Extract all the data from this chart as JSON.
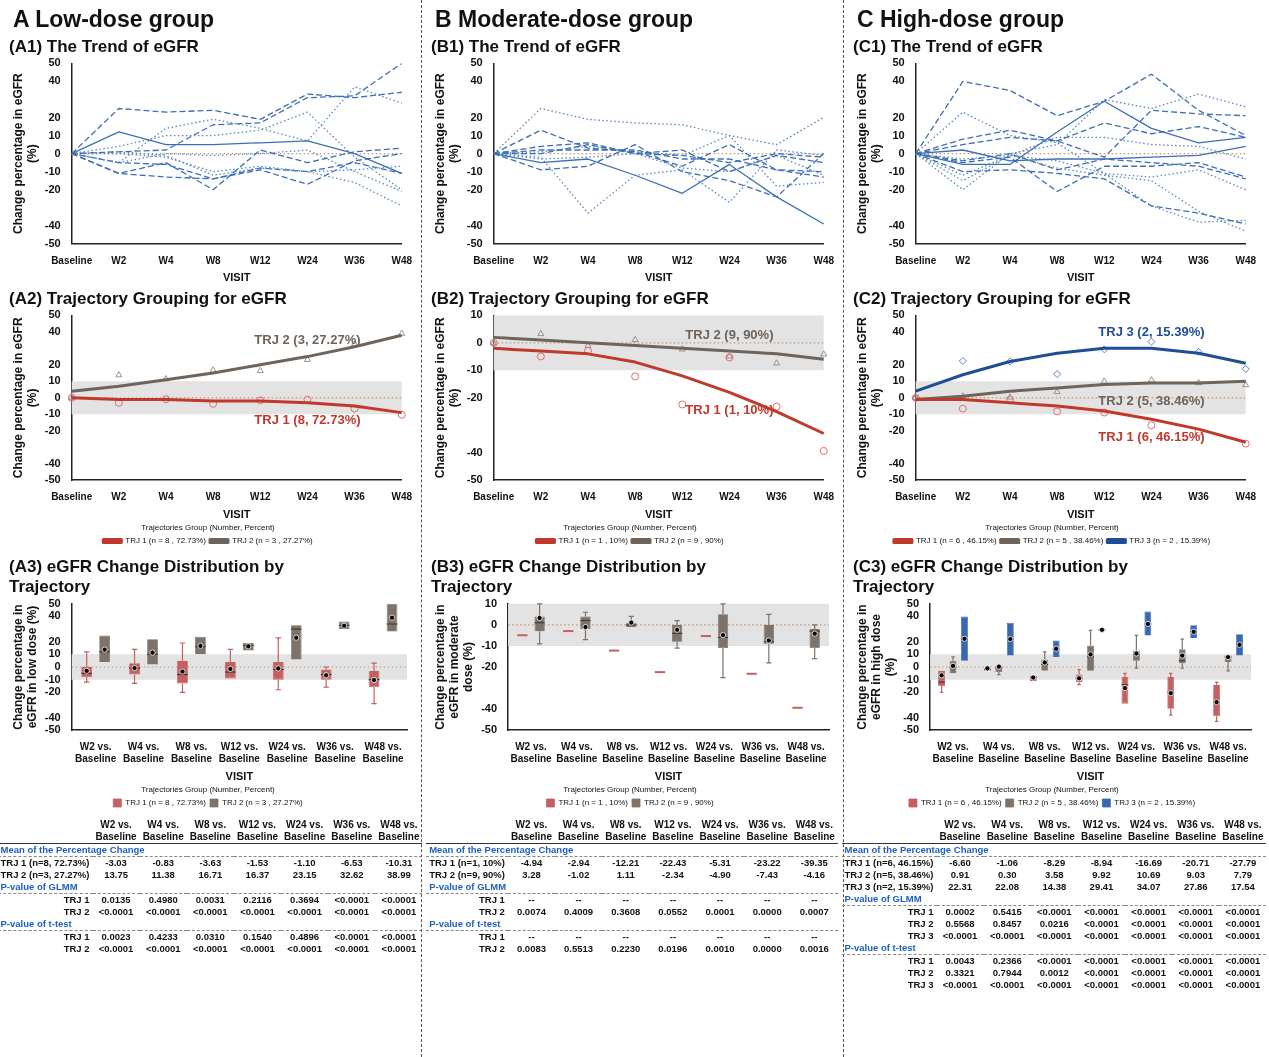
{
  "chart_data": [
    {
      "type": "line",
      "title": "(A1) The Trend of eGFR",
      "annotations": [
        "A  Low-dose group"
      ],
      "xlabel": "VISIT",
      "ylabel": "Change percentage in eGFR (%)",
      "marker": "none",
      "categories": [
        "Baseline",
        "W2",
        "W4",
        "W8",
        "W12",
        "W24",
        "W36",
        "W48"
      ],
      "ylim": [
        -50,
        50
      ],
      "yticks": [
        -50,
        -40,
        -20,
        -10,
        0,
        10,
        20,
        40,
        50
      ],
      "ref_lines": [
        {
          "axis": "y",
          "value": 0,
          "color": "#c8956a",
          "line_style": "dotted"
        }
      ],
      "series": [
        {
          "color": "#3d6fb6",
          "line_style": "solid",
          "values": [
            0,
            12,
            5,
            5,
            6,
            7,
            0,
            -11
          ]
        },
        {
          "color": "#3d6fb6",
          "line_style": "dashed",
          "values": [
            0,
            25,
            23,
            24,
            19,
            33,
            31,
            34
          ]
        },
        {
          "color": "#5b86c4",
          "line_style": "dotted",
          "values": [
            0,
            -5,
            14,
            19,
            14,
            7,
            37,
            28
          ]
        },
        {
          "color": "#3d6fb6",
          "line_style": "dashed",
          "values": [
            0,
            1,
            2,
            16,
            17,
            31,
            32,
            50
          ]
        },
        {
          "color": "#5b86c4",
          "line_style": "dotted",
          "values": [
            0,
            4,
            10,
            10,
            13,
            23,
            -2,
            -20
          ]
        },
        {
          "color": "#3d6fb6",
          "line_style": "dashed",
          "values": [
            0,
            -11,
            -5,
            -20,
            2,
            -5,
            1,
            3
          ]
        },
        {
          "color": "#3d6fb6",
          "line_style": "dashed",
          "values": [
            0,
            -11,
            -13,
            -14,
            -9,
            -17,
            -4,
            0
          ]
        },
        {
          "color": "#5b86c4",
          "line_style": "dotted",
          "values": [
            0,
            -5,
            0,
            -1,
            0,
            2,
            -10,
            -21
          ]
        },
        {
          "color": "#5b86c4",
          "line_style": "dotted",
          "values": [
            0,
            0,
            -2,
            -10,
            -7,
            -10,
            -16,
            -29
          ]
        },
        {
          "color": "#5b86c4",
          "line_style": "dotted",
          "values": [
            0,
            1,
            -1,
            -12,
            -8,
            -10,
            -9,
            -7
          ]
        },
        {
          "color": "#3d6fb6",
          "line_style": "dashed",
          "values": [
            0,
            -5,
            -6,
            -14,
            -8,
            -10,
            -5,
            -11
          ]
        }
      ]
    },
    {
      "type": "line",
      "title": "(A2) Trajectory Grouping for eGFR",
      "xlabel": "VISIT",
      "ylabel": "Change percentage in eGFR (%)",
      "marker": "none",
      "legend": "bottom",
      "legend_title": "Trajectories Group (Number, Percent)",
      "categories": [
        "Baseline",
        "W2",
        "W4",
        "W8",
        "W12",
        "W24",
        "W36",
        "W48"
      ],
      "ylim": [
        -50,
        50
      ],
      "yticks": [
        -50,
        -40,
        -20,
        -10,
        0,
        10,
        20,
        40,
        50
      ],
      "bands": [
        {
          "axis": "y",
          "from": -10,
          "to": 10,
          "color": "#e3e3e3"
        }
      ],
      "ref_lines": [
        {
          "axis": "y",
          "value": 0,
          "color": "#c8956a",
          "line_style": "dotted"
        }
      ],
      "annotations": [
        "TRJ 1 (8, 72.73%)",
        "TRJ 2 (3, 27.27%)"
      ],
      "series": [
        {
          "name": "TRJ 1 (n = 8 , 72.73%)",
          "color": "#c0392b",
          "values": [
            0,
            -1,
            -1,
            -2,
            -2,
            -3,
            -5,
            -9
          ]
        },
        {
          "name": "TRJ 2 (n = 3 , 27.27%)",
          "color": "#6e645c",
          "values": [
            4,
            7,
            11,
            15,
            20,
            25,
            31,
            38
          ]
        },
        {
          "type": "scatter",
          "marker": "circle",
          "color": "#e07070",
          "x": [
            "Baseline",
            "W2",
            "W4",
            "W8",
            "W12",
            "W24",
            "W36",
            "W48"
          ],
          "values": [
            0,
            -3.03,
            -0.83,
            -3.63,
            -1.53,
            -1.1,
            -6.53,
            -10.31
          ]
        },
        {
          "type": "scatter",
          "marker": "triangle",
          "color": "#9a928a",
          "x": [
            "Baseline",
            "W2",
            "W4",
            "W8",
            "W12",
            "W24",
            "W36",
            "W48"
          ],
          "values": [
            0,
            13.75,
            11.38,
            16.71,
            16.37,
            23.15,
            32.62,
            38.99
          ]
        }
      ]
    },
    {
      "type": "box",
      "title": "(A3) eGFR Change Distribution by Trajectory",
      "xlabel": "VISIT",
      "ylabel": "Change percentage in eGFR in low dose (%)",
      "legend": "bottom",
      "legend_title": "Trajectories Group (Number, Percent)",
      "categories": [
        "W2 vs. Baseline",
        "W4 vs. Baseline",
        "W8 vs. Baseline",
        "W12 vs. Baseline",
        "W24 vs. Baseline",
        "W36 vs. Baseline",
        "W48 vs. Baseline"
      ],
      "ylim": [
        -50,
        50
      ],
      "yticks": [
        -50,
        -40,
        -20,
        -10,
        0,
        10,
        20,
        40,
        50
      ],
      "bands": [
        {
          "axis": "y",
          "from": -10,
          "to": 10,
          "color": "#e3e3e3"
        }
      ],
      "ref_lines": [
        {
          "axis": "y",
          "value": 0,
          "color": "#c8956a",
          "line_style": "dotted"
        }
      ],
      "series": [
        {
          "name": "TRJ 1 (n = 8 , 72.73%)",
          "color": "#c46060",
          "boxes": [
            {
              "low": -12,
              "q1": -8,
              "median": -5,
              "q3": 0,
              "high": 12,
              "mean": -3.03
            },
            {
              "low": -13,
              "q1": -6,
              "median": -1,
              "q3": 3,
              "high": 14,
              "mean": -0.83
            },
            {
              "low": -20,
              "q1": -13,
              "median": -6,
              "q3": 5,
              "high": 19,
              "mean": -3.63
            },
            {
              "low": -9,
              "q1": -9,
              "median": -4,
              "q3": 4,
              "high": 14,
              "mean": -1.53
            },
            {
              "low": -18,
              "q1": -10,
              "median": -2,
              "q3": 4,
              "high": 23,
              "mean": -1.1
            },
            {
              "low": -16,
              "q1": -10,
              "median": -6,
              "q3": -2,
              "high": 0,
              "mean": -6.53
            },
            {
              "low": -29,
              "q1": -16,
              "median": -10,
              "q3": -3,
              "high": 3,
              "mean": -10.31
            }
          ]
        },
        {
          "name": "TRJ 2 (n = 3 , 27.27%)",
          "color": "#7d736a",
          "boxes": [
            {
              "low": 4,
              "q1": 4,
              "median": 12,
              "q3": 25,
              "high": 25,
              "mean": 13.75
            },
            {
              "low": 2,
              "q1": 2,
              "median": 10,
              "q3": 22,
              "high": 22,
              "mean": 11.38
            },
            {
              "low": 10,
              "q1": 10,
              "median": 16,
              "q3": 24,
              "high": 24,
              "mean": 16.71
            },
            {
              "low": 13,
              "q1": 13,
              "median": 17,
              "q3": 19,
              "high": 19,
              "mean": 16.37
            },
            {
              "low": 6,
              "q1": 6,
              "median": 30,
              "q3": 33,
              "high": 33,
              "mean": 23.15
            },
            {
              "low": 30,
              "q1": 30,
              "median": 33,
              "q3": 36,
              "high": 36,
              "mean": 32.62
            },
            {
              "low": 28,
              "q1": 28,
              "median": 34,
              "q3": 50,
              "high": 50,
              "mean": 38.99
            }
          ]
        }
      ]
    },
    {
      "type": "other",
      "categories": [
        "W2 vs. Baseline",
        "W4 vs. Baseline",
        "W8 vs. Baseline",
        "W12 vs. Baseline",
        "W24 vs. Baseline",
        "W36 vs. Baseline",
        "W48 vs. Baseline"
      ],
      "y_categories": [
        "Mean of the Percentage Change",
        "TRJ 1  (n=8, 72.73%)",
        "TRJ 2  (n=3, 27.27%)",
        "P-value of GLMM",
        "TRJ 1",
        "TRJ 2",
        "P-value of t-test",
        "TRJ 1",
        "TRJ 2"
      ],
      "cell_labels": [
        [
          null,
          null,
          null,
          null,
          null,
          null,
          null
        ],
        [
          "-3.03",
          "-0.83",
          "-3.63",
          "-1.53",
          "-1.10",
          "-6.53",
          "-10.31"
        ],
        [
          "13.75",
          "11.38",
          "16.71",
          "16.37",
          "23.15",
          "32.62",
          "38.99"
        ],
        [
          null,
          null,
          null,
          null,
          null,
          null,
          null
        ],
        [
          "0.0135",
          "0.4980",
          "0.0031",
          "0.2116",
          "0.3694",
          "<0.0001",
          "<0.0001"
        ],
        [
          "<0.0001",
          "<0.0001",
          "<0.0001",
          "<0.0001",
          "<0.0001",
          "<0.0001",
          "<0.0001"
        ],
        [
          null,
          null,
          null,
          null,
          null,
          null,
          null
        ],
        [
          "0.0023",
          "0.4233",
          "0.0310",
          "0.1540",
          "0.4896",
          "<0.0001",
          "<0.0001"
        ],
        [
          "<0.0001",
          "<0.0001",
          "<0.0001",
          "<0.0001",
          "<0.0001",
          "<0.0001",
          "<0.0001"
        ]
      ]
    },
    {
      "type": "line",
      "title": "(B1) The Trend of eGFR",
      "annotations": [
        "B  Moderate-dose group"
      ],
      "xlabel": "VISIT",
      "ylabel": "Change percentage in eGFR (%)",
      "marker": "none",
      "categories": [
        "Baseline",
        "W2",
        "W4",
        "W8",
        "W12",
        "W24",
        "W36",
        "W48"
      ],
      "ylim": [
        -50,
        50
      ],
      "yticks": [
        -50,
        -40,
        -20,
        -10,
        0,
        10,
        20,
        40,
        50
      ],
      "ref_lines": [
        {
          "axis": "y",
          "value": 0,
          "color": "#c8956a",
          "line_style": "dotted"
        }
      ],
      "series": [
        {
          "color": "#5b86c4",
          "line_style": "dotted",
          "values": [
            0,
            25,
            19,
            17,
            16,
            10,
            5,
            20
          ]
        },
        {
          "color": "#3d6fb6",
          "line_style": "dashed",
          "values": [
            0,
            13,
            3,
            1,
            -7,
            5,
            -9,
            -13
          ]
        },
        {
          "color": "#3d6fb6",
          "line_style": "solid",
          "values": [
            0,
            -5,
            -3,
            -12,
            -22,
            -6,
            -24,
            -39
          ]
        },
        {
          "color": "#5b86c4",
          "line_style": "dotted",
          "values": [
            0,
            -2,
            -33,
            -12,
            -9,
            -27,
            2,
            -1
          ]
        },
        {
          "color": "#3d6fb6",
          "line_style": "dashed",
          "values": [
            0,
            -9,
            -7,
            5,
            -10,
            -15,
            -24,
            0
          ]
        },
        {
          "color": "#3d6fb6",
          "line_style": "dashed",
          "values": [
            0,
            4,
            6,
            0,
            2,
            -10,
            -1,
            -5
          ]
        },
        {
          "color": "#5b86c4",
          "line_style": "dotted",
          "values": [
            0,
            1,
            4,
            1,
            -1,
            10,
            -18,
            -16
          ]
        },
        {
          "color": "#3d6fb6",
          "line_style": "dashed",
          "values": [
            0,
            2,
            2,
            2,
            -3,
            -3,
            -9,
            -10
          ]
        },
        {
          "color": "#5b86c4",
          "line_style": "dotted",
          "values": [
            0,
            -3,
            -2,
            0,
            -8,
            -10,
            -1,
            -12
          ]
        },
        {
          "color": "#3d6fb6",
          "line_style": "dashed",
          "values": [
            0,
            0,
            5,
            0,
            -1,
            -5,
            0,
            -2
          ]
        }
      ]
    },
    {
      "type": "line",
      "title": "(B2) Trajectory Grouping for eGFR",
      "xlabel": "VISIT",
      "ylabel": "Change percentage in eGFR (%)",
      "marker": "none",
      "legend": "bottom",
      "legend_title": "Trajectories Group (Number, Percent)",
      "categories": [
        "Baseline",
        "W2",
        "W4",
        "W8",
        "W12",
        "W24",
        "W36",
        "W48"
      ],
      "ylim": [
        -50,
        10
      ],
      "yticks": [
        -50,
        -40,
        -20,
        -10,
        0,
        10
      ],
      "bands": [
        {
          "axis": "y",
          "from": -10,
          "to": 10,
          "color": "#e3e3e3"
        }
      ],
      "ref_lines": [
        {
          "axis": "y",
          "value": 0,
          "color": "#c8956a",
          "line_style": "dotted"
        }
      ],
      "annotations": [
        "TRJ 1 (1, 10%)",
        "TRJ 2 (9, 90%)"
      ],
      "series": [
        {
          "name": "TRJ 1 (n = 1 , 10%)",
          "color": "#c0392b",
          "values": [
            -2,
            -3,
            -4,
            -7,
            -12,
            -18,
            -25,
            -33
          ]
        },
        {
          "name": "TRJ 2 (n = 9 , 90%)",
          "color": "#6e645c",
          "values": [
            2,
            1,
            0,
            -1,
            -2,
            -3,
            -4,
            -6
          ]
        },
        {
          "type": "scatter",
          "marker": "circle",
          "color": "#e07070",
          "x": [
            "Baseline",
            "W2",
            "W4",
            "W8",
            "W12",
            "W24",
            "W36",
            "W48"
          ],
          "values": [
            0,
            -4.94,
            -2.94,
            -12.21,
            -22.43,
            -5.31,
            -23.22,
            -39.35
          ]
        },
        {
          "type": "scatter",
          "marker": "triangle",
          "color": "#9a928a",
          "x": [
            "Baseline",
            "W2",
            "W4",
            "W8",
            "W12",
            "W24",
            "W36",
            "W48"
          ],
          "values": [
            0,
            3.28,
            -1.02,
            1.11,
            -2.34,
            -4.9,
            -7.43,
            -4.16
          ]
        }
      ]
    },
    {
      "type": "box",
      "title": "(B3) eGFR Change Distribution by Trajectory",
      "xlabel": "VISIT",
      "ylabel": "Change percentage in eGFR in moderate dose (%)",
      "legend": "bottom",
      "legend_title": "Trajectories Group (Number, Percent)",
      "categories": [
        "W2 vs. Baseline",
        "W4 vs. Baseline",
        "W8 vs. Baseline",
        "W12 vs. Baseline",
        "W24 vs. Baseline",
        "W36 vs. Baseline",
        "W48 vs. Baseline"
      ],
      "ylim": [
        -50,
        10
      ],
      "yticks": [
        -50,
        -40,
        -20,
        -10,
        0,
        10
      ],
      "bands": [
        {
          "axis": "y",
          "from": -10,
          "to": 10,
          "color": "#e3e3e3"
        }
      ],
      "ref_lines": [
        {
          "axis": "y",
          "value": 0,
          "color": "#c8956a",
          "line_style": "dotted"
        }
      ],
      "series": [
        {
          "name": "TRJ 1 (n = 1 , 10%)",
          "color": "#c46060",
          "boxes": [
            {
              "low": -4.94,
              "q1": -4.94,
              "median": -4.94,
              "q3": -4.94,
              "high": -4.94
            },
            {
              "low": -2.94,
              "q1": -2.94,
              "median": -2.94,
              "q3": -2.94,
              "high": -2.94
            },
            {
              "low": -12.21,
              "q1": -12.21,
              "median": -12.21,
              "q3": -12.21,
              "high": -12.21
            },
            {
              "low": -22.43,
              "q1": -22.43,
              "median": -22.43,
              "q3": -22.43,
              "high": -22.43
            },
            {
              "low": -5.31,
              "q1": -5.31,
              "median": -5.31,
              "q3": -5.31,
              "high": -5.31
            },
            {
              "low": -23.22,
              "q1": -23.22,
              "median": -23.22,
              "q3": -23.22,
              "high": -23.22
            },
            {
              "low": -39.35,
              "q1": -39.35,
              "median": -39.35,
              "q3": -39.35,
              "high": -39.35
            }
          ]
        },
        {
          "name": "TRJ 2 (n = 9 , 90%)",
          "color": "#7d736a",
          "boxes": [
            {
              "low": -9,
              "q1": -3,
              "median": 1,
              "q3": 4,
              "high": 10,
              "mean": 3.28
            },
            {
              "low": -7,
              "q1": -2,
              "median": 2,
              "q3": 4,
              "high": 6,
              "mean": -1.02
            },
            {
              "low": -1,
              "q1": -1,
              "median": 0,
              "q3": 1,
              "high": 4,
              "mean": 1.11
            },
            {
              "low": -11,
              "q1": -8,
              "median": -4,
              "q3": 0,
              "high": 2,
              "mean": -2.34
            },
            {
              "low": -25,
              "q1": -11,
              "median": -6,
              "q3": 5,
              "high": 10,
              "mean": -4.9
            },
            {
              "low": -18,
              "q1": -9,
              "median": -8,
              "q3": 0,
              "high": 5,
              "mean": -7.43
            },
            {
              "low": -16,
              "q1": -11,
              "median": -3,
              "q3": -2,
              "high": 0,
              "mean": -4.16
            }
          ]
        }
      ]
    },
    {
      "type": "other",
      "categories": [
        "W2 vs. Baseline",
        "W4 vs. Baseline",
        "W8 vs. Baseline",
        "W12 vs. Baseline",
        "W24 vs. Baseline",
        "W36 vs. Baseline",
        "W48 vs. Baseline"
      ],
      "y_categories": [
        "Mean of the Percentage Change",
        "TRJ 1  (n=1, 10%)",
        "TRJ 2  (n=9, 90%)",
        "P-value of GLMM",
        "TRJ 1",
        "TRJ 2",
        "P-value of t-test",
        "TRJ 1",
        "TRJ 2"
      ],
      "cell_labels": [
        [
          null,
          null,
          null,
          null,
          null,
          null,
          null
        ],
        [
          "-4.94",
          "-2.94",
          "-12.21",
          "-22.43",
          "-5.31",
          "-23.22",
          "-39.35"
        ],
        [
          "3.28",
          "-1.02",
          "1.11",
          "-2.34",
          "-4.90",
          "-7.43",
          "-4.16"
        ],
        [
          null,
          null,
          null,
          null,
          null,
          null,
          null
        ],
        [
          "--",
          "--",
          "--",
          "--",
          "--",
          "--",
          "--"
        ],
        [
          "0.0074",
          "0.4009",
          "0.3608",
          "0.0552",
          "0.0001",
          "0.0000",
          "0.0007"
        ],
        [
          null,
          null,
          null,
          null,
          null,
          null,
          null
        ],
        [
          "--",
          "--",
          "--",
          "--",
          "--",
          "--",
          "--"
        ],
        [
          "0.0083",
          "0.5513",
          "0.2230",
          "0.0196",
          "0.0010",
          "0.0000",
          "0.0016"
        ]
      ]
    },
    {
      "type": "line",
      "title": "(C1) The Trend of eGFR",
      "annotations": [
        "C  High-dose group"
      ],
      "xlabel": "VISIT",
      "ylabel": "Change percentage in eGFR (%)",
      "marker": "none",
      "categories": [
        "Baseline",
        "W2",
        "W4",
        "W8",
        "W12",
        "W24",
        "W36",
        "W48"
      ],
      "ylim": [
        -50,
        50
      ],
      "yticks": [
        -50,
        -40,
        -20,
        -10,
        0,
        10,
        20,
        40,
        50
      ],
      "ref_lines": [
        {
          "axis": "y",
          "value": 0,
          "color": "#c8956a",
          "line_style": "dotted"
        }
      ],
      "series": [
        {
          "color": "#3d6fb6",
          "line_style": "dashed",
          "values": [
            0,
            40,
            35,
            21,
            29,
            44,
            24,
            10
          ]
        },
        {
          "color": "#3d6fb6",
          "line_style": "solid",
          "values": [
            0,
            2,
            -4,
            -3,
            -3,
            -2,
            -1,
            4
          ]
        },
        {
          "color": "#3d6fb6",
          "line_style": "solid",
          "values": [
            0,
            -6,
            -6,
            12,
            29,
            14,
            6,
            9
          ]
        },
        {
          "color": "#5b86c4",
          "line_style": "dotted",
          "values": [
            0,
            23,
            10,
            6,
            -11,
            -13,
            -9,
            -20
          ]
        },
        {
          "color": "#3d6fb6",
          "line_style": "dashed",
          "values": [
            0,
            8,
            13,
            7,
            17,
            11,
            15,
            9
          ]
        },
        {
          "color": "#3d6fb6",
          "line_style": "dashed",
          "values": [
            0,
            5,
            9,
            7,
            -2,
            24,
            22,
            21
          ]
        },
        {
          "color": "#5b86c4",
          "line_style": "dotted",
          "values": [
            0,
            -20,
            0,
            5,
            30,
            25,
            33,
            26
          ]
        },
        {
          "color": "#3d6fb6",
          "line_style": "dashed",
          "values": [
            0,
            -5,
            -2,
            -21,
            -7,
            -7,
            -5,
            -13
          ]
        },
        {
          "color": "#3d6fb6",
          "line_style": "dashed",
          "values": [
            0,
            -10,
            -9,
            -11,
            -14,
            -29,
            -33,
            -39
          ]
        },
        {
          "color": "#5b86c4",
          "line_style": "dotted",
          "values": [
            0,
            -15,
            -1,
            -8,
            -12,
            -15,
            -32,
            -43
          ]
        },
        {
          "color": "#5b86c4",
          "line_style": "dotted",
          "values": [
            0,
            -3,
            -1,
            -4,
            -11,
            -29,
            -38,
            -37
          ]
        },
        {
          "color": "#5b86c4",
          "line_style": "dotted",
          "values": [
            0,
            -12,
            -1,
            9,
            9,
            5,
            4,
            -3
          ]
        },
        {
          "color": "#3d6fb6",
          "line_style": "dashed",
          "values": [
            0,
            -4,
            0,
            -9,
            -3,
            -5,
            -7,
            -14
          ]
        }
      ]
    },
    {
      "type": "line",
      "title": "(C2) Trajectory Grouping for eGFR",
      "xlabel": "VISIT",
      "ylabel": "Change percentage in eGFR (%)",
      "marker": "none",
      "legend": "bottom",
      "legend_title": "Trajectories Group (Number, Percent)",
      "categories": [
        "Baseline",
        "W2",
        "W4",
        "W8",
        "W12",
        "W24",
        "W36",
        "W48"
      ],
      "ylim": [
        -50,
        50
      ],
      "yticks": [
        -50,
        -40,
        -20,
        -10,
        0,
        10,
        20,
        40,
        50
      ],
      "bands": [
        {
          "axis": "y",
          "from": -10,
          "to": 10,
          "color": "#e3e3e3"
        }
      ],
      "ref_lines": [
        {
          "axis": "y",
          "value": 0,
          "color": "#c8956a",
          "line_style": "dotted"
        }
      ],
      "annotations": [
        "TRJ 1 (6, 46.15%)",
        "TRJ 2 (5, 38.46%)",
        "TRJ 3 (2, 15.39%)"
      ],
      "series": [
        {
          "name": "TRJ 1 (n = 6 , 46.15%)",
          "color": "#c0392b",
          "values": [
            -1,
            -1,
            -3,
            -5,
            -8,
            -13,
            -19,
            -27
          ]
        },
        {
          "name": "TRJ 2 (n = 5 , 38.46%)",
          "color": "#6e645c",
          "values": [
            -1,
            1,
            4,
            6,
            8,
            9,
            9,
            10
          ]
        },
        {
          "name": "TRJ 3 (n = 2 , 15.39%)",
          "color": "#1f4e96",
          "values": [
            4,
            14,
            22,
            27,
            30,
            30,
            27,
            21
          ]
        },
        {
          "type": "scatter",
          "marker": "circle",
          "color": "#e07070",
          "x": [
            "Baseline",
            "W2",
            "W4",
            "W8",
            "W12",
            "W24",
            "W36",
            "W48"
          ],
          "values": [
            0,
            -6.6,
            -1.06,
            -8.29,
            -8.94,
            -16.69,
            -20.71,
            -27.79
          ]
        },
        {
          "type": "scatter",
          "marker": "triangle",
          "color": "#9a928a",
          "x": [
            "Baseline",
            "W2",
            "W4",
            "W8",
            "W12",
            "W24",
            "W36",
            "W48"
          ],
          "values": [
            0,
            0.91,
            0.3,
            3.58,
            9.92,
            10.69,
            9.03,
            7.79
          ]
        },
        {
          "type": "scatter",
          "marker": "diamond",
          "color": "#5b86c4",
          "x": [
            "Baseline",
            "W2",
            "W4",
            "W8",
            "W12",
            "W24",
            "W36",
            "W48"
          ],
          "values": [
            0,
            22.31,
            22.08,
            14.38,
            29.41,
            34.07,
            27.86,
            17.54
          ]
        }
      ]
    },
    {
      "type": "box",
      "title": "(C3) eGFR Change Distribution by Trajectory",
      "xlabel": "VISIT",
      "ylabel": "Change percentage in eGFR in high dose (%)",
      "legend": "bottom",
      "legend_title": "Trajectories Group (Number, Percent)",
      "categories": [
        "W2 vs. Baseline",
        "W4 vs. Baseline",
        "W8 vs. Baseline",
        "W12 vs. Baseline",
        "W24 vs. Baseline",
        "W36 vs. Baseline",
        "W48 vs. Baseline"
      ],
      "ylim": [
        -50,
        50
      ],
      "yticks": [
        -50,
        -40,
        -20,
        -10,
        0,
        10,
        20,
        40,
        50
      ],
      "bands": [
        {
          "axis": "y",
          "from": -10,
          "to": 10,
          "color": "#e3e3e3"
        }
      ],
      "ref_lines": [
        {
          "axis": "y",
          "value": 0,
          "color": "#c8956a",
          "line_style": "dotted"
        }
      ],
      "series": [
        {
          "name": "TRJ 1 (n = 6 , 46.15%)",
          "color": "#c46060",
          "boxes": [
            {
              "low": -20,
              "q1": -15,
              "median": -12,
              "q3": -3,
              "high": -3,
              "mean": -6.6
            },
            {
              "low": -3,
              "q1": -3,
              "median": -2,
              "q3": -1,
              "high": -1,
              "mean": -1.06
            },
            {
              "low": -11,
              "q1": -11,
              "median": -8,
              "q3": -7,
              "high": -7,
              "mean": -8.29
            },
            {
              "low": -14,
              "q1": -12,
              "median": -9,
              "q3": -6,
              "high": -2,
              "mean": -8.94
            },
            {
              "low": -29,
              "q1": -29,
              "median": -14,
              "q3": -8,
              "high": -5,
              "mean": -16.69
            },
            {
              "low": -38,
              "q1": -33,
              "median": -20,
              "q3": -8,
              "high": -5,
              "mean": -20.71
            },
            {
              "low": -43,
              "q1": -39,
              "median": -28,
              "q3": -14,
              "high": -12,
              "mean": -27.79
            }
          ]
        },
        {
          "name": "TRJ 2 (n = 5 , 38.46%)",
          "color": "#7d736a",
          "boxes": [
            {
              "low": -5,
              "q1": -5,
              "median": 0,
              "q3": 5,
              "high": 8,
              "mean": 0.91
            },
            {
              "low": -6,
              "q1": -4,
              "median": -1,
              "q3": 1,
              "high": 1,
              "mean": 0.3
            },
            {
              "low": -3,
              "q1": -3,
              "median": 2,
              "q3": 6,
              "high": 12,
              "mean": 3.58
            },
            {
              "low": -3,
              "q1": -3,
              "median": 8,
              "q3": 17,
              "high": 29,
              "mean": 9.92
            },
            {
              "low": -1,
              "q1": 5,
              "median": 10,
              "q3": 13,
              "high": 25,
              "mean": 10.69
            },
            {
              "low": -1,
              "q1": 3,
              "median": 5,
              "q3": 14,
              "high": 22,
              "mean": 9.03
            },
            {
              "low": -3,
              "q1": 4,
              "median": 8,
              "q3": 9,
              "high": 9,
              "mean": 7.79
            }
          ]
        },
        {
          "name": "TRJ 3 (n = 2 , 15.39%)",
          "color": "#3a68b0",
          "boxes": [
            {
              "low": 5,
              "q1": 5,
              "median": 22,
              "q3": 40,
              "high": 40,
              "mean": 22.31
            },
            {
              "low": 9,
              "q1": 9,
              "median": 22,
              "q3": 35,
              "high": 35,
              "mean": 22.08
            },
            {
              "low": 8,
              "q1": 8,
              "median": 14,
              "q3": 21,
              "high": 21,
              "mean": 14.38
            },
            {
              "low": 29,
              "q1": 29,
              "median": 29.4,
              "q3": 30,
              "high": 30,
              "mean": 29.41
            },
            {
              "low": 25,
              "q1": 25,
              "median": 34,
              "q3": 44,
              "high": 44,
              "mean": 34.07
            },
            {
              "low": 23,
              "q1": 23,
              "median": 28,
              "q3": 33,
              "high": 33,
              "mean": 27.86
            },
            {
              "low": 9,
              "q1": 9,
              "median": 18,
              "q3": 26,
              "high": 26,
              "mean": 17.54
            }
          ]
        }
      ]
    },
    {
      "type": "other",
      "categories": [
        "W2 vs. Baseline",
        "W4 vs. Baseline",
        "W8 vs. Baseline",
        "W12 vs. Baseline",
        "W24 vs. Baseline",
        "W36 vs. Baseline",
        "W48 vs. Baseline"
      ],
      "y_categories": [
        "Mean of the Percentage Change",
        "TRJ 1 (n=6, 46.15%)",
        "TRJ 2 (n=5, 38.46%)",
        "TRJ 3 (n=2, 15.39%)",
        "P-value of GLMM",
        "TRJ 1",
        "TRJ 2",
        "TRJ 3",
        "P-value of t-test",
        "TRJ 1",
        "TRJ 2",
        "TRJ 3"
      ],
      "cell_labels": [
        [
          null,
          null,
          null,
          null,
          null,
          null,
          null
        ],
        [
          "-6.60",
          "-1.06",
          "-8.29",
          "-8.94",
          "-16.69",
          "-20.71",
          "-27.79"
        ],
        [
          "0.91",
          "0.30",
          "3.58",
          "9.92",
          "10.69",
          "9.03",
          "7.79"
        ],
        [
          "22.31",
          "22.08",
          "14.38",
          "29.41",
          "34.07",
          "27.86",
          "17.54"
        ],
        [
          null,
          null,
          null,
          null,
          null,
          null,
          null
        ],
        [
          "0.0002",
          "0.5415",
          "<0.0001",
          "<0.0001",
          "<0.0001",
          "<0.0001",
          "<0.0001"
        ],
        [
          "0.5568",
          "0.8457",
          "0.0216",
          "<0.0001",
          "<0.0001",
          "<0.0001",
          "<0.0001"
        ],
        [
          "<0.0001",
          "<0.0001",
          "<0.0001",
          "<0.0001",
          "<0.0001",
          "<0.0001",
          "<0.0001"
        ],
        [
          null,
          null,
          null,
          null,
          null,
          null,
          null
        ],
        [
          "0.0043",
          "0.2366",
          "<0.0001",
          "<0.0001",
          "<0.0001",
          "<0.0001",
          "<0.0001"
        ],
        [
          "0.3321",
          "0.7944",
          "0.0012",
          "<0.0001",
          "<0.0001",
          "<0.0001",
          "<0.0001"
        ],
        [
          "<0.0001",
          "<0.0001",
          "<0.0001",
          "<0.0001",
          "<0.0001",
          "<0.0001",
          "<0.0001"
        ]
      ]
    }
  ]
}
